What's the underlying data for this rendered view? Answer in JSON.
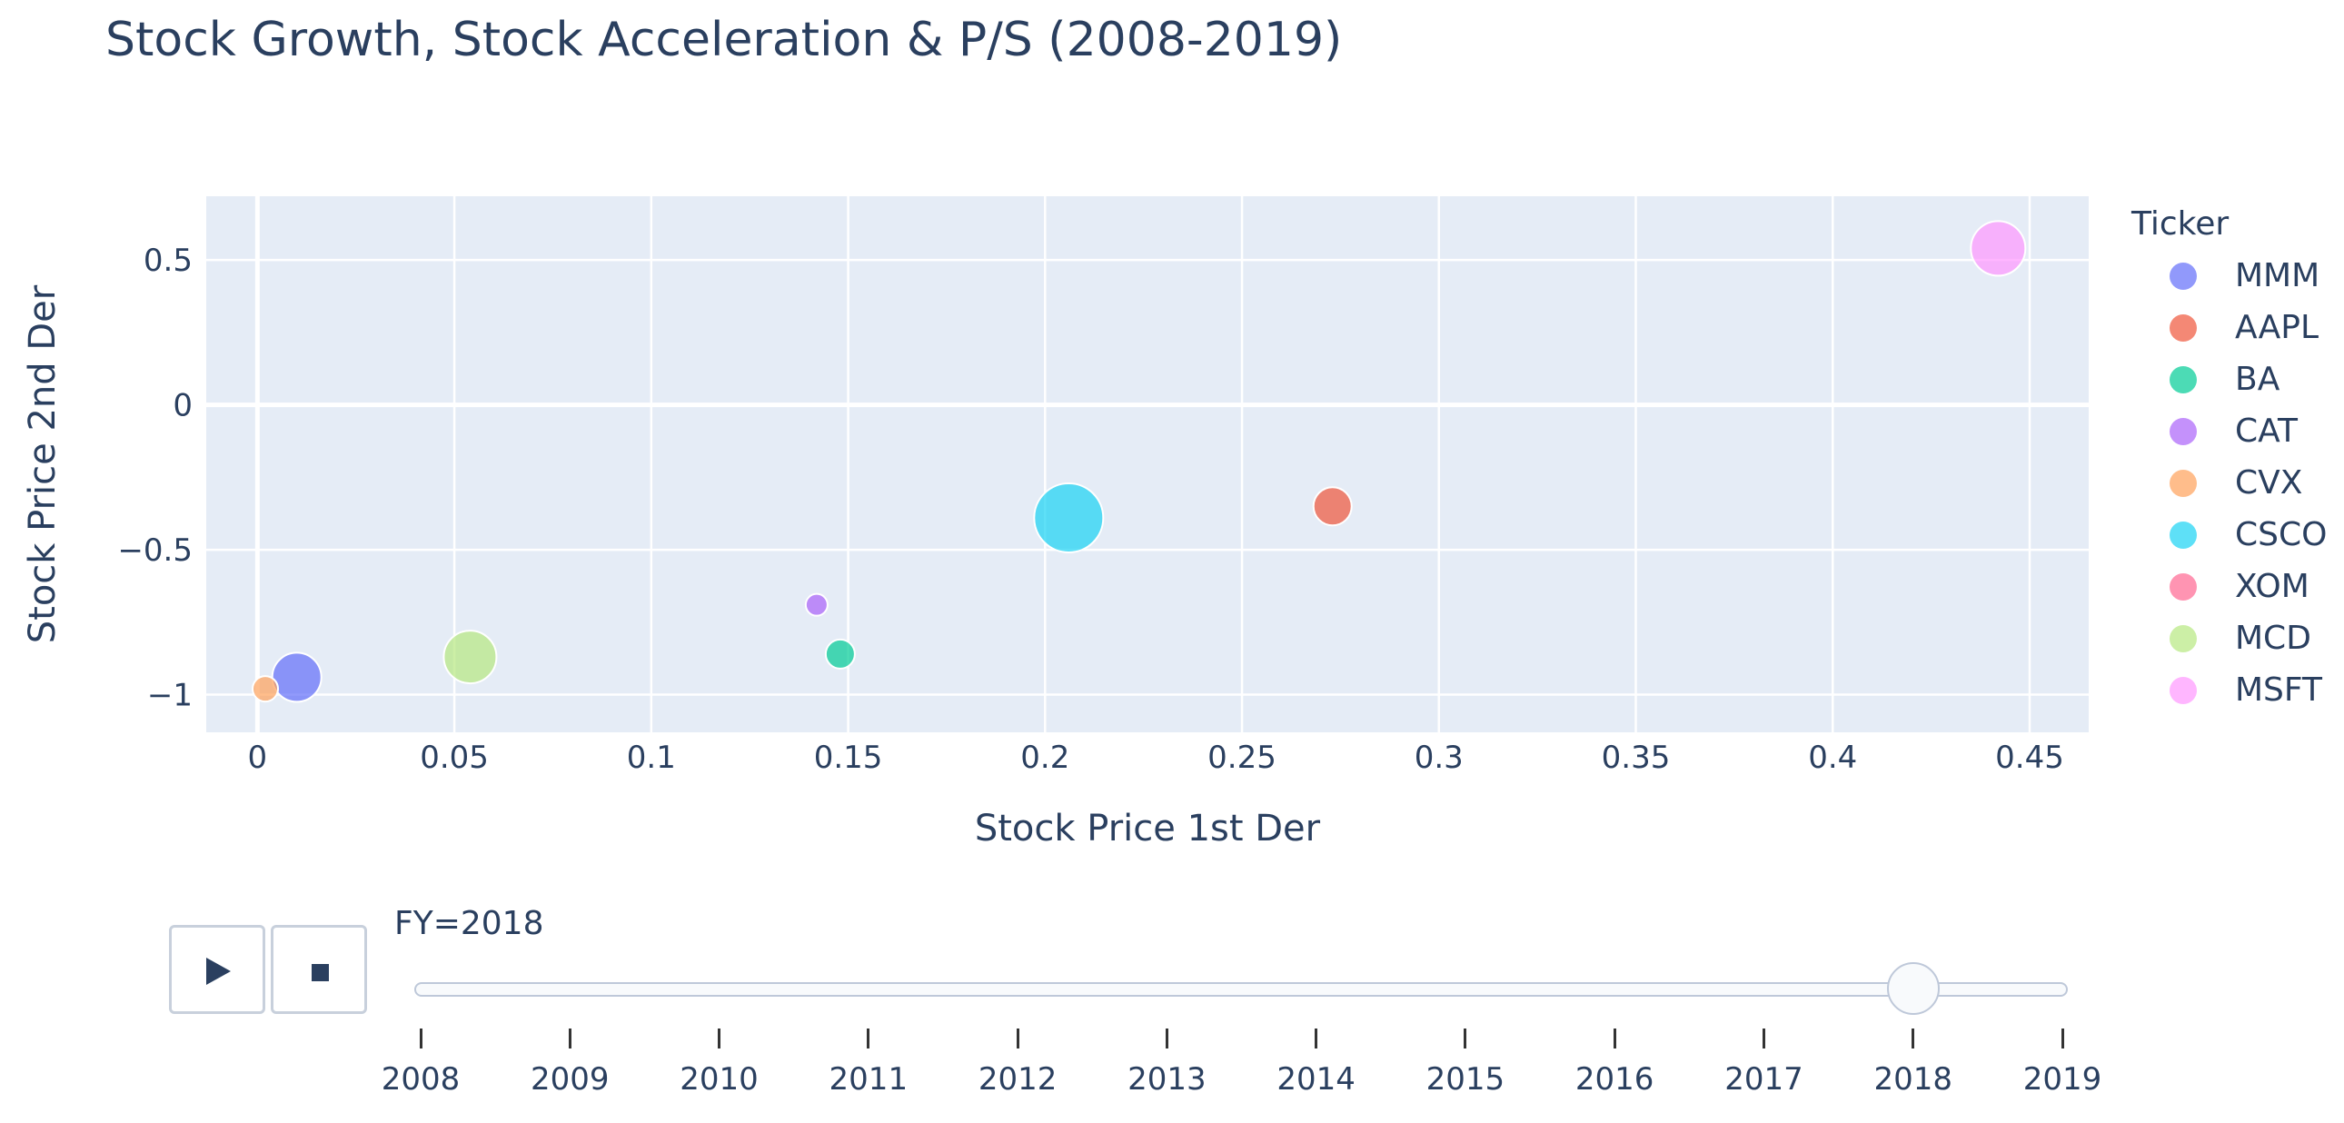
{
  "chart_data": {
    "type": "scatter",
    "title": "Stock Growth, Stock Acceleration & P/S (2008-2019)",
    "xlabel": "Stock Price 1st Der",
    "ylabel": "Stock Price 2nd Der",
    "xlim": [
      -0.013,
      0.465
    ],
    "ylim": [
      -1.13,
      0.72
    ],
    "xticks": [
      0,
      0.05,
      0.1,
      0.15,
      0.2,
      0.25,
      0.3,
      0.35,
      0.4,
      0.45
    ],
    "xtick_labels": [
      "0",
      "0.05",
      "0.1",
      "0.15",
      "0.2",
      "0.25",
      "0.3",
      "0.35",
      "0.4",
      "0.45"
    ],
    "yticks": [
      0.5,
      0,
      -0.5,
      -1
    ],
    "ytick_labels": [
      "0.5",
      "0",
      "−0.5",
      "−1"
    ],
    "grid": true,
    "size_encoding": "P/S",
    "legend_title": "Ticker",
    "legend_position": "right",
    "series": [
      {
        "name": "MMM",
        "color": "#636efa",
        "x": [
          0.01
        ],
        "y": [
          -0.94
        ],
        "size": [
          27
        ]
      },
      {
        "name": "AAPL",
        "color": "#EF553B",
        "x": [
          0.273
        ],
        "y": [
          -0.35
        ],
        "size": [
          21
        ]
      },
      {
        "name": "BA",
        "color": "#00cc96",
        "x": [
          0.148
        ],
        "y": [
          -0.86
        ],
        "size": [
          16
        ]
      },
      {
        "name": "CAT",
        "color": "#ab63fa",
        "x": [
          0.142
        ],
        "y": [
          -0.69
        ],
        "size": [
          12
        ]
      },
      {
        "name": "CVX",
        "color": "#FFA15A",
        "x": [
          0.002
        ],
        "y": [
          -0.98
        ],
        "size": [
          14
        ]
      },
      {
        "name": "CSCO",
        "color": "#19d3f3",
        "x": [
          0.206
        ],
        "y": [
          -0.39
        ],
        "size": [
          38
        ]
      },
      {
        "name": "XOM",
        "color": "#FF6692",
        "x": [],
        "y": [],
        "size": []
      },
      {
        "name": "MCD",
        "color": "#B6E880",
        "x": [
          0.054
        ],
        "y": [
          -0.87
        ],
        "size": [
          29
        ]
      },
      {
        "name": "MSFT",
        "color": "#FF97FF",
        "x": [
          0.442
        ],
        "y": [
          0.54
        ],
        "size": [
          30
        ]
      }
    ]
  },
  "slider": {
    "current_label": "FY=2018",
    "current_value": 2018,
    "years": [
      "2008",
      "2009",
      "2010",
      "2011",
      "2012",
      "2013",
      "2014",
      "2015",
      "2016",
      "2017",
      "2018",
      "2019"
    ]
  },
  "controls": {
    "play_icon": "play-icon",
    "stop_icon": "stop-icon"
  }
}
